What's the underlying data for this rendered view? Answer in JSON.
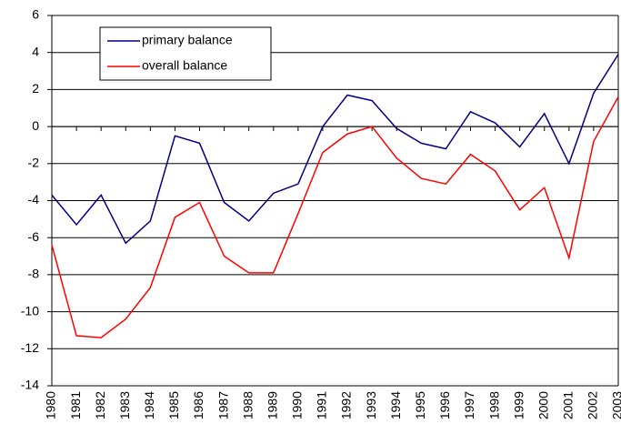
{
  "chart_data": {
    "type": "line",
    "categories": [
      "1980",
      "1981",
      "1982",
      "1983",
      "1984",
      "1985",
      "1986",
      "1987",
      "1988",
      "1989",
      "1990",
      "1991",
      "1992",
      "1993",
      "1994",
      "1995",
      "1996",
      "1997",
      "1998",
      "1999",
      "2000",
      "2001",
      "2002",
      "2003"
    ],
    "series": [
      {
        "name": "primary balance",
        "color": "#000080",
        "values": [
          -3.7,
          -5.3,
          -3.7,
          -6.3,
          -5.1,
          -0.5,
          -0.9,
          -4.1,
          -5.1,
          -3.6,
          -3.1,
          0.0,
          1.7,
          1.4,
          -0.1,
          -0.9,
          -1.2,
          0.8,
          0.2,
          -1.1,
          0.7,
          -2.0,
          1.8,
          3.9
        ]
      },
      {
        "name": "overall balance",
        "color": "#ff0000",
        "values": [
          -6.4,
          -11.3,
          -11.4,
          -10.4,
          -8.7,
          -4.9,
          -4.1,
          -7.0,
          -7.9,
          -7.9,
          -4.7,
          -1.4,
          -0.4,
          0.0,
          -1.7,
          -2.8,
          -3.1,
          -1.5,
          -2.4,
          -4.5,
          -3.3,
          -7.1,
          -0.8,
          1.6
        ]
      }
    ],
    "ylim": [
      -14,
      6
    ],
    "yticks": [
      -14,
      -12,
      -10,
      -8,
      -6,
      -4,
      -2,
      0,
      2,
      4,
      6
    ],
    "grid": true,
    "legend": "top-left"
  }
}
